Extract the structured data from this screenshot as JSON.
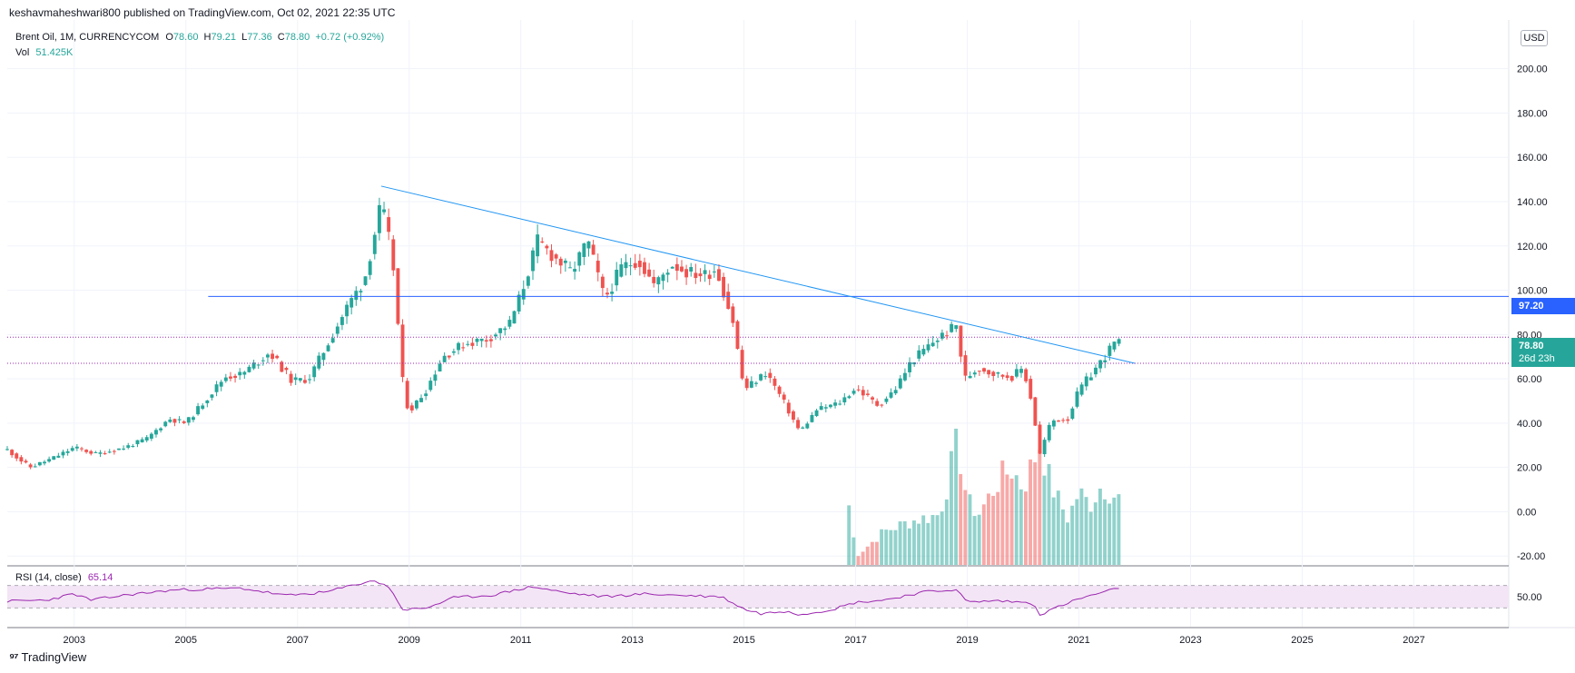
{
  "header": {
    "publish_line": "keshavmaheshwari800 published on TradingView.com, Oct 02, 2021 22:35 UTC"
  },
  "legend": {
    "symbol": "Brent Oil, 1M, CURRENCYCOM",
    "o_label": "O",
    "o": "78.60",
    "h_label": "H",
    "h": "79.21",
    "l_label": "L",
    "l": "77.36",
    "c_label": "C",
    "c": "78.80",
    "change": "+0.72 (+0.92%)",
    "vol_label": "Vol",
    "vol": "51.425K",
    "rsi_label": "RSI (14, close)",
    "rsi": "65.14"
  },
  "currency_button": "USD",
  "price_tags": {
    "line_level": "97.20",
    "last_price": "78.80",
    "countdown": "26d 23h"
  },
  "footer": {
    "brand": "TradingView"
  },
  "colors": {
    "up": "#26a69a",
    "down": "#ef5350",
    "trendline": "#2196f3",
    "hline": "#2962ff",
    "rsi": "#9c27b0",
    "rsi_band": "#f3e5f5"
  },
  "chart_data": [
    {
      "type": "candlestick",
      "title": "Brent Oil, 1M, CURRENCYCOM",
      "x_tick_labels": [
        "2003",
        "2005",
        "2007",
        "2009",
        "2011",
        "2013",
        "2015",
        "2017",
        "2019",
        "2021",
        "2023",
        "2025",
        "2027"
      ],
      "x_range": [
        2001.8,
        2028.7
      ],
      "y_tick_labels": [
        "-20.00",
        "0.00",
        "20.00",
        "40.00",
        "60.00",
        "80.00",
        "100.00",
        "120.00",
        "140.00",
        "160.00",
        "180.00",
        "200.00"
      ],
      "ylim": [
        -24,
        222
      ],
      "y_axis_side": "right",
      "close_anchors": [
        [
          2001.8,
          28
        ],
        [
          2002.2,
          20
        ],
        [
          2002.6,
          24
        ],
        [
          2003.0,
          29
        ],
        [
          2003.4,
          26
        ],
        [
          2003.9,
          29
        ],
        [
          2004.3,
          33
        ],
        [
          2004.7,
          42
        ],
        [
          2005.0,
          40
        ],
        [
          2005.4,
          52
        ],
        [
          2005.7,
          61
        ],
        [
          2006.0,
          62
        ],
        [
          2006.5,
          72
        ],
        [
          2006.9,
          59
        ],
        [
          2007.2,
          60
        ],
        [
          2007.5,
          74
        ],
        [
          2007.9,
          93
        ],
        [
          2008.2,
          105
        ],
        [
          2008.5,
          139
        ],
        [
          2008.7,
          115
        ],
        [
          2008.9,
          54
        ],
        [
          2009.0,
          45
        ],
        [
          2009.3,
          55
        ],
        [
          2009.6,
          70
        ],
        [
          2010.0,
          76
        ],
        [
          2010.4,
          78
        ],
        [
          2010.8,
          85
        ],
        [
          2011.0,
          98
        ],
        [
          2011.3,
          122
        ],
        [
          2011.6,
          115
        ],
        [
          2011.9,
          108
        ],
        [
          2012.2,
          122
        ],
        [
          2012.5,
          96
        ],
        [
          2012.8,
          110
        ],
        [
          2013.1,
          114
        ],
        [
          2013.4,
          102
        ],
        [
          2013.7,
          112
        ],
        [
          2014.0,
          108
        ],
        [
          2014.3,
          107
        ],
        [
          2014.5,
          110
        ],
        [
          2014.8,
          86
        ],
        [
          2015.0,
          55
        ],
        [
          2015.4,
          63
        ],
        [
          2015.7,
          50
        ],
        [
          2016.0,
          36
        ],
        [
          2016.3,
          46
        ],
        [
          2016.7,
          49
        ],
        [
          2017.0,
          56
        ],
        [
          2017.4,
          48
        ],
        [
          2017.7,
          55
        ],
        [
          2018.0,
          68
        ],
        [
          2018.4,
          77
        ],
        [
          2018.8,
          84
        ],
        [
          2018.95,
          60
        ],
        [
          2019.2,
          65
        ],
        [
          2019.5,
          62
        ],
        [
          2019.8,
          61
        ],
        [
          2020.0,
          65
        ],
        [
          2020.15,
          50
        ],
        [
          2020.3,
          26
        ],
        [
          2020.5,
          41
        ],
        [
          2020.8,
          42
        ],
        [
          2021.0,
          55
        ],
        [
          2021.4,
          68
        ],
        [
          2021.6,
          75
        ],
        [
          2021.75,
          78.8
        ]
      ],
      "last_close": 78.8
    },
    {
      "type": "bar",
      "title": "Vol",
      "latest_value": "51.425K",
      "visible_from": 2017.0,
      "relative_volume_anchors": [
        [
          2016.9,
          0.45
        ],
        [
          2017.0,
          0.06
        ],
        [
          2017.5,
          0.25
        ],
        [
          2018.0,
          0.33
        ],
        [
          2018.5,
          0.38
        ],
        [
          2018.7,
          0.7
        ],
        [
          2018.8,
          1.0
        ],
        [
          2019.0,
          0.48
        ],
        [
          2019.2,
          0.38
        ],
        [
          2019.6,
          0.66
        ],
        [
          2019.8,
          0.72
        ],
        [
          2020.0,
          0.58
        ],
        [
          2020.2,
          0.8
        ],
        [
          2020.3,
          0.92
        ],
        [
          2020.5,
          0.6
        ],
        [
          2020.8,
          0.35
        ],
        [
          2021.0,
          0.55
        ],
        [
          2021.2,
          0.45
        ],
        [
          2021.4,
          0.6
        ],
        [
          2021.7,
          0.5
        ]
      ]
    },
    {
      "type": "line",
      "title": "RSI (14, close)",
      "latest_value": 65.14,
      "ylim": [
        0,
        100
      ],
      "band": [
        30,
        70
      ],
      "y_tick_labels": [
        "50.00"
      ],
      "anchors": [
        [
          2001.8,
          42
        ],
        [
          2002.5,
          44
        ],
        [
          2003.0,
          55
        ],
        [
          2003.3,
          44
        ],
        [
          2004.0,
          54
        ],
        [
          2004.8,
          62
        ],
        [
          2005.5,
          64
        ],
        [
          2006.0,
          65
        ],
        [
          2006.8,
          52
        ],
        [
          2007.5,
          58
        ],
        [
          2008.3,
          78
        ],
        [
          2008.6,
          72
        ],
        [
          2008.9,
          26
        ],
        [
          2009.3,
          30
        ],
        [
          2009.8,
          48
        ],
        [
          2010.5,
          53
        ],
        [
          2011.2,
          68
        ],
        [
          2011.8,
          57
        ],
        [
          2012.5,
          50
        ],
        [
          2013.2,
          55
        ],
        [
          2014.0,
          52
        ],
        [
          2014.6,
          50
        ],
        [
          2015.0,
          28
        ],
        [
          2015.3,
          20
        ],
        [
          2015.8,
          25
        ],
        [
          2016.0,
          18
        ],
        [
          2016.6,
          28
        ],
        [
          2017.0,
          40
        ],
        [
          2017.5,
          44
        ],
        [
          2018.2,
          58
        ],
        [
          2018.8,
          63
        ],
        [
          2019.0,
          40
        ],
        [
          2019.5,
          43
        ],
        [
          2020.0,
          40
        ],
        [
          2020.2,
          38
        ],
        [
          2020.3,
          18
        ],
        [
          2020.7,
          35
        ],
        [
          2021.0,
          46
        ],
        [
          2021.5,
          60
        ],
        [
          2021.75,
          65.14
        ]
      ]
    }
  ],
  "annotations": {
    "horizontal_line": {
      "price": 97.2,
      "x_start": 2005.4,
      "color": "#2962ff"
    },
    "trendline": {
      "x1": 2008.5,
      "y1": 147,
      "x2": 2022.0,
      "y2": 67,
      "color": "#2196f3"
    },
    "dotted_lines": [
      78.8,
      67.0
    ]
  }
}
